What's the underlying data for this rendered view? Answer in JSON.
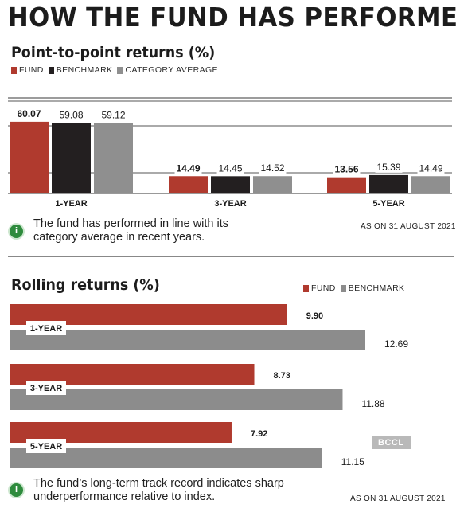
{
  "title": "HOW THE FUND HAS PERFORMED",
  "colors": {
    "fund": "#b03a2e",
    "benchmark": "#231f20",
    "category_average": "#8f8f8f",
    "rolling_benchmark": "#8c8c8c"
  },
  "icons": [
    "info-icon"
  ],
  "p2p": {
    "title": "Point-to-point returns (%)",
    "legend": [
      "FUND",
      "BENCHMARK",
      "CATEGORY AVERAGE"
    ],
    "note": [
      "The fund has performed in line with its",
      "category average in recent years."
    ],
    "as_on": "AS ON 31 AUGUST 2021"
  },
  "rolling": {
    "title": "Rolling returns (%)",
    "legend": [
      "FUND",
      "BENCHMARK"
    ],
    "note": [
      "The fund’s long-term track record indicates sharp",
      "underperformance relative to index."
    ],
    "as_on": "AS ON 31 AUGUST 2021",
    "watermark": "BCCL"
  },
  "chart_data": [
    {
      "type": "bar",
      "title": "Point-to-point returns (%)",
      "categories": [
        "1-YEAR",
        "3-YEAR",
        "5-YEAR"
      ],
      "series": [
        {
          "name": "FUND",
          "values": [
            60.07,
            14.49,
            13.56
          ],
          "labels": [
            "60.07",
            "14.49",
            "13.56"
          ]
        },
        {
          "name": "BENCHMARK",
          "values": [
            59.08,
            14.45,
            15.39
          ],
          "labels": [
            "59.08",
            "14.45",
            "15.39"
          ]
        },
        {
          "name": "CATEGORY AVERAGE",
          "values": [
            59.12,
            14.52,
            14.49
          ],
          "labels": [
            "59.12",
            "14.52",
            "14.49"
          ]
        }
      ],
      "grid": true,
      "legend": "top-left"
    },
    {
      "type": "bar",
      "orientation": "horizontal",
      "title": "Rolling returns (%)",
      "categories": [
        "1-YEAR",
        "3-YEAR",
        "5-YEAR"
      ],
      "series": [
        {
          "name": "FUND",
          "values": [
            9.9,
            8.73,
            7.92
          ],
          "labels": [
            "9.90",
            "8.73",
            "7.92"
          ]
        },
        {
          "name": "BENCHMARK",
          "values": [
            12.69,
            11.88,
            11.15
          ],
          "labels": [
            "12.69",
            "11.88",
            "11.15"
          ]
        }
      ],
      "legend": "top-right"
    }
  ]
}
